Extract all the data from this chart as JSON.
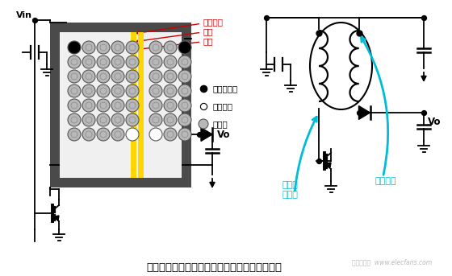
{
  "bg_color": "#ffffff",
  "title_text": "绕制一次侧和二次侧绕组时骨架的旋转方向相反",
  "title_fontsize": 10,
  "watermark": "电子发烧友  www.elecfans.com",
  "label_jueyuan": "绣缘胶带",
  "label_dangqiang": "挡墙",
  "label_gujia": "骨架",
  "label_start": "绕组起始端",
  "label_end": "绕组末端",
  "label_jing": "静默端",
  "label_vo1": "Vo",
  "label_vo2": "Vo",
  "label_vin": "Vin",
  "label_bianyaqi": "变压器\n起始端",
  "label_raoxian": "绕线顺序",
  "cyan_color": "#00bcd4",
  "red_color": "#cc0000",
  "black_color": "#000000"
}
